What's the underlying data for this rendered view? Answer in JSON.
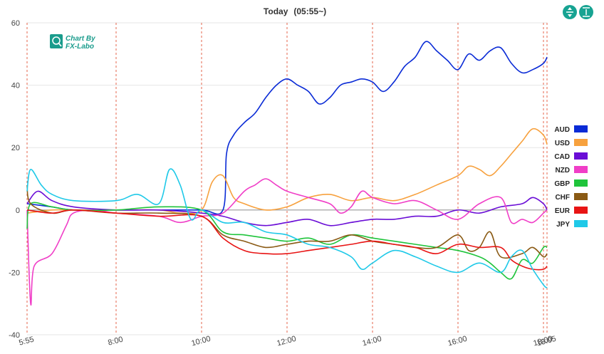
{
  "chart_data": {
    "type": "line",
    "title": "Today",
    "subtitle": "(05:55~)",
    "watermark": [
      "Chart By",
      "FX-Labo"
    ],
    "ylim": [
      -40,
      60
    ],
    "yticks": [
      60,
      40,
      20,
      0,
      -20,
      -40
    ],
    "x_range": [
      "5:55",
      "18:05"
    ],
    "xticks": [
      {
        "t": "5:55",
        "label": "5:55"
      },
      {
        "t": "8:00",
        "label": "8:00"
      },
      {
        "t": "10:00",
        "label": "10:00"
      },
      {
        "t": "12:00",
        "label": "12:00"
      },
      {
        "t": "14:00",
        "label": "14:00"
      },
      {
        "t": "16:00",
        "label": "16:00"
      },
      {
        "t": "18:00",
        "label": "18:00"
      },
      {
        "t": "18:05",
        "label": "18:05"
      }
    ],
    "vlines": [
      "5:55",
      "8:00",
      "10:00",
      "12:00",
      "14:00",
      "16:00",
      "18:00",
      "18:05"
    ],
    "legend_position": "right",
    "grid": true,
    "series": [
      {
        "name": "AUD",
        "color": "#0a2bd6",
        "points": [
          [
            "5:55",
            2
          ],
          [
            "6:30",
            1
          ],
          [
            "7:00",
            0
          ],
          [
            "8:00",
            0
          ],
          [
            "9:00",
            0
          ],
          [
            "10:00",
            0
          ],
          [
            "10:30",
            0
          ],
          [
            "10:35",
            18
          ],
          [
            "10:45",
            24
          ],
          [
            "11:00",
            28
          ],
          [
            "11:15",
            31
          ],
          [
            "11:30",
            36
          ],
          [
            "11:45",
            40
          ],
          [
            "12:00",
            42
          ],
          [
            "12:15",
            40
          ],
          [
            "12:30",
            38
          ],
          [
            "12:45",
            34
          ],
          [
            "13:00",
            36
          ],
          [
            "13:15",
            40
          ],
          [
            "13:30",
            41
          ],
          [
            "13:45",
            42
          ],
          [
            "14:00",
            41
          ],
          [
            "14:15",
            38
          ],
          [
            "14:30",
            41
          ],
          [
            "14:45",
            46
          ],
          [
            "15:00",
            49
          ],
          [
            "15:15",
            54
          ],
          [
            "15:30",
            51
          ],
          [
            "15:45",
            48
          ],
          [
            "16:00",
            45
          ],
          [
            "16:15",
            50
          ],
          [
            "16:30",
            48
          ],
          [
            "16:45",
            51
          ],
          [
            "17:00",
            52
          ],
          [
            "17:15",
            47
          ],
          [
            "17:30",
            44
          ],
          [
            "17:45",
            45
          ],
          [
            "18:00",
            47
          ],
          [
            "18:05",
            49
          ]
        ]
      },
      {
        "name": "USD",
        "color": "#f7a13e",
        "points": [
          [
            "5:55",
            -1
          ],
          [
            "6:30",
            0
          ],
          [
            "7:00",
            0
          ],
          [
            "8:00",
            0
          ],
          [
            "9:00",
            0
          ],
          [
            "9:30",
            -1
          ],
          [
            "10:00",
            0
          ],
          [
            "10:15",
            9
          ],
          [
            "10:30",
            11
          ],
          [
            "10:45",
            4
          ],
          [
            "11:00",
            2
          ],
          [
            "11:30",
            0
          ],
          [
            "12:00",
            1
          ],
          [
            "12:30",
            4
          ],
          [
            "13:00",
            5
          ],
          [
            "13:30",
            3
          ],
          [
            "14:00",
            4
          ],
          [
            "14:30",
            3
          ],
          [
            "15:00",
            5
          ],
          [
            "15:30",
            8
          ],
          [
            "16:00",
            11
          ],
          [
            "16:15",
            14
          ],
          [
            "16:30",
            13
          ],
          [
            "16:45",
            11
          ],
          [
            "17:00",
            14
          ],
          [
            "17:15",
            18
          ],
          [
            "17:30",
            22
          ],
          [
            "17:45",
            26
          ],
          [
            "18:00",
            24
          ],
          [
            "18:05",
            21
          ]
        ]
      },
      {
        "name": "CAD",
        "color": "#6a0dd6",
        "points": [
          [
            "5:55",
            2
          ],
          [
            "6:10",
            6
          ],
          [
            "6:30",
            3
          ],
          [
            "7:00",
            1
          ],
          [
            "8:00",
            0
          ],
          [
            "9:00",
            0
          ],
          [
            "10:00",
            -1
          ],
          [
            "10:30",
            -2
          ],
          [
            "11:00",
            -4
          ],
          [
            "11:30",
            -5
          ],
          [
            "12:00",
            -4
          ],
          [
            "12:30",
            -3
          ],
          [
            "13:00",
            -5
          ],
          [
            "13:30",
            -4
          ],
          [
            "14:00",
            -3
          ],
          [
            "14:30",
            -3
          ],
          [
            "15:00",
            -2
          ],
          [
            "15:30",
            -2
          ],
          [
            "16:00",
            0
          ],
          [
            "16:30",
            -1
          ],
          [
            "17:00",
            1
          ],
          [
            "17:30",
            2
          ],
          [
            "17:45",
            4
          ],
          [
            "18:00",
            2
          ],
          [
            "18:05",
            0
          ]
        ]
      },
      {
        "name": "NZD",
        "color": "#f03ec7",
        "points": [
          [
            "5:55",
            0
          ],
          [
            "6:00",
            -30
          ],
          [
            "6:05",
            -18
          ],
          [
            "6:30",
            -14
          ],
          [
            "6:50",
            -5
          ],
          [
            "7:00",
            -1
          ],
          [
            "7:30",
            0
          ],
          [
            "8:00",
            -1
          ],
          [
            "9:00",
            -2
          ],
          [
            "9:30",
            -4
          ],
          [
            "10:00",
            -2
          ],
          [
            "10:30",
            -1
          ],
          [
            "11:00",
            6
          ],
          [
            "11:15",
            8
          ],
          [
            "11:30",
            10
          ],
          [
            "11:45",
            8
          ],
          [
            "12:00",
            6
          ],
          [
            "12:30",
            4
          ],
          [
            "13:00",
            2
          ],
          [
            "13:15",
            -1
          ],
          [
            "13:30",
            1
          ],
          [
            "13:45",
            6
          ],
          [
            "14:00",
            4
          ],
          [
            "14:30",
            2
          ],
          [
            "15:00",
            3
          ],
          [
            "15:30",
            0
          ],
          [
            "16:00",
            -3
          ],
          [
            "16:30",
            2
          ],
          [
            "17:00",
            4
          ],
          [
            "17:15",
            -4
          ],
          [
            "17:30",
            -3
          ],
          [
            "17:45",
            -4
          ],
          [
            "18:00",
            -1
          ],
          [
            "18:05",
            0
          ]
        ]
      },
      {
        "name": "GBP",
        "color": "#1fc43b",
        "points": [
          [
            "5:55",
            -6
          ],
          [
            "6:00",
            2
          ],
          [
            "6:30",
            1
          ],
          [
            "7:00",
            0
          ],
          [
            "8:00",
            0
          ],
          [
            "9:00",
            1
          ],
          [
            "10:00",
            0
          ],
          [
            "10:30",
            -7
          ],
          [
            "11:00",
            -8
          ],
          [
            "11:30",
            -9
          ],
          [
            "12:00",
            -10
          ],
          [
            "12:30",
            -9
          ],
          [
            "13:00",
            -11
          ],
          [
            "13:30",
            -8
          ],
          [
            "14:00",
            -9
          ],
          [
            "14:30",
            -10
          ],
          [
            "15:00",
            -11
          ],
          [
            "15:30",
            -12
          ],
          [
            "16:00",
            -13
          ],
          [
            "16:30",
            -15
          ],
          [
            "16:45",
            -17
          ],
          [
            "17:00",
            -20
          ],
          [
            "17:15",
            -22
          ],
          [
            "17:30",
            -16
          ],
          [
            "17:45",
            -17
          ],
          [
            "18:00",
            -12
          ],
          [
            "18:05",
            -12
          ]
        ]
      },
      {
        "name": "CHF",
        "color": "#8a5a14",
        "points": [
          [
            "5:55",
            8
          ],
          [
            "6:00",
            2
          ],
          [
            "6:30",
            -1
          ],
          [
            "7:00",
            0
          ],
          [
            "8:00",
            -1
          ],
          [
            "9:00",
            -1
          ],
          [
            "10:00",
            -2
          ],
          [
            "10:30",
            -8
          ],
          [
            "11:00",
            -10
          ],
          [
            "11:30",
            -12
          ],
          [
            "12:00",
            -11
          ],
          [
            "12:30",
            -10
          ],
          [
            "13:00",
            -10
          ],
          [
            "13:30",
            -8
          ],
          [
            "14:00",
            -10
          ],
          [
            "14:30",
            -11
          ],
          [
            "15:00",
            -12
          ],
          [
            "15:30",
            -12
          ],
          [
            "16:00",
            -8
          ],
          [
            "16:15",
            -13
          ],
          [
            "16:30",
            -12
          ],
          [
            "16:45",
            -7
          ],
          [
            "17:00",
            -15
          ],
          [
            "17:30",
            -14
          ],
          [
            "17:45",
            -12
          ],
          [
            "18:00",
            -15
          ],
          [
            "18:05",
            -14
          ]
        ]
      },
      {
        "name": "EUR",
        "color": "#e81414",
        "points": [
          [
            "5:55",
            0
          ],
          [
            "6:30",
            -1
          ],
          [
            "7:00",
            0
          ],
          [
            "8:00",
            -1
          ],
          [
            "9:00",
            -2
          ],
          [
            "10:00",
            -2
          ],
          [
            "10:30",
            -9
          ],
          [
            "11:00",
            -13
          ],
          [
            "11:30",
            -14
          ],
          [
            "12:00",
            -14
          ],
          [
            "12:30",
            -13
          ],
          [
            "13:00",
            -12
          ],
          [
            "13:30",
            -11
          ],
          [
            "14:00",
            -10
          ],
          [
            "14:30",
            -11
          ],
          [
            "15:00",
            -12
          ],
          [
            "15:30",
            -14
          ],
          [
            "16:00",
            -11
          ],
          [
            "16:30",
            -12
          ],
          [
            "17:00",
            -12
          ],
          [
            "17:15",
            -16
          ],
          [
            "17:30",
            -18
          ],
          [
            "17:45",
            -19
          ],
          [
            "18:00",
            -19
          ],
          [
            "18:05",
            -18
          ]
        ]
      },
      {
        "name": "JPY",
        "color": "#1fc9e8",
        "points": [
          [
            "5:55",
            6
          ],
          [
            "6:00",
            13
          ],
          [
            "6:15",
            8
          ],
          [
            "6:30",
            5
          ],
          [
            "7:00",
            3
          ],
          [
            "8:00",
            3
          ],
          [
            "8:30",
            5
          ],
          [
            "9:00",
            2
          ],
          [
            "9:15",
            13
          ],
          [
            "9:30",
            8
          ],
          [
            "9:45",
            -3
          ],
          [
            "10:00",
            0
          ],
          [
            "10:30",
            -4
          ],
          [
            "11:00",
            -4
          ],
          [
            "11:30",
            -7
          ],
          [
            "12:00",
            -8
          ],
          [
            "12:30",
            -11
          ],
          [
            "13:00",
            -12
          ],
          [
            "13:30",
            -15
          ],
          [
            "13:45",
            -19
          ],
          [
            "14:00",
            -17
          ],
          [
            "14:30",
            -13
          ],
          [
            "15:00",
            -15
          ],
          [
            "15:30",
            -18
          ],
          [
            "16:00",
            -20
          ],
          [
            "16:30",
            -17
          ],
          [
            "17:00",
            -20
          ],
          [
            "17:15",
            -15
          ],
          [
            "17:30",
            -13
          ],
          [
            "17:45",
            -19
          ],
          [
            "18:00",
            -24
          ],
          [
            "18:05",
            -25
          ]
        ]
      }
    ]
  },
  "toolbar": {
    "expand_icon": "expand-vertical-icon",
    "fit_icon": "fit-vertical-icon"
  }
}
